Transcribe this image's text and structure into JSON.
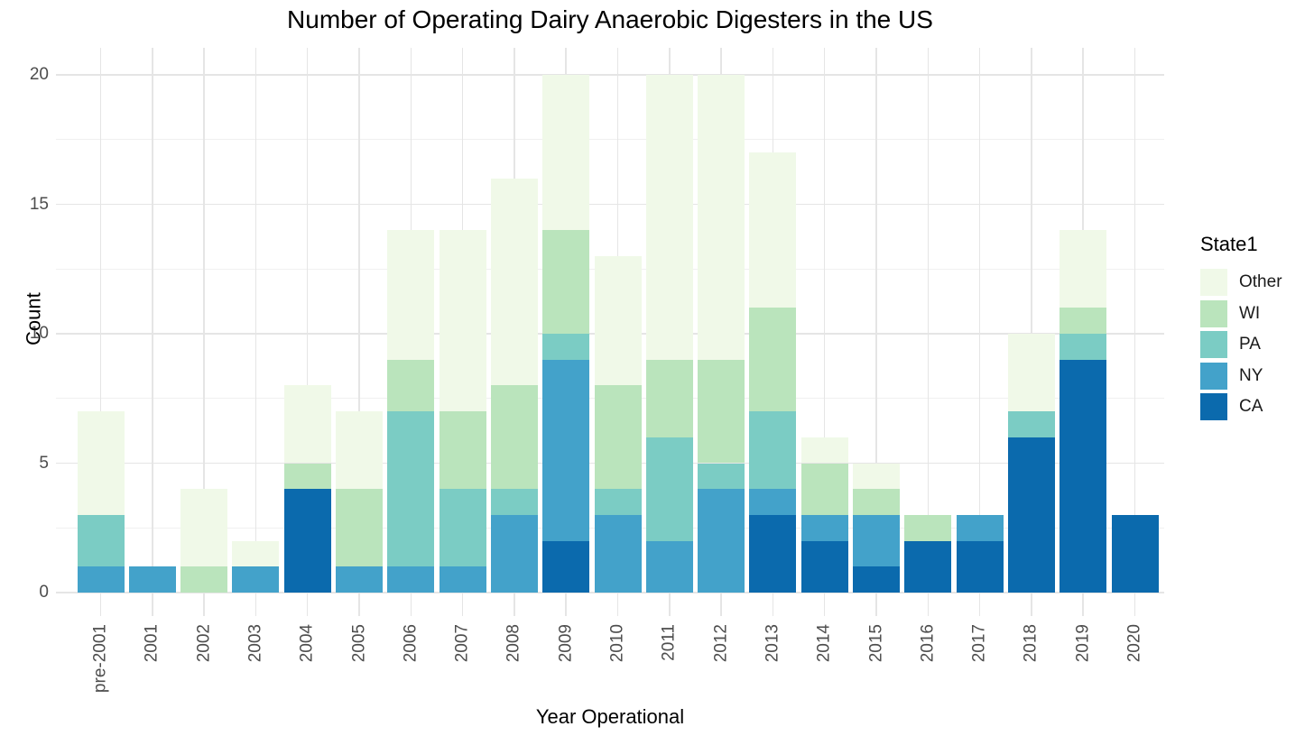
{
  "title": "Number of Operating Dairy Anaerobic Digesters in the US",
  "axes": {
    "x_label": "Year Operational",
    "y_label": "Count",
    "y_ticks": [
      0,
      5,
      10,
      15,
      20
    ],
    "y_minor_ticks": [
      2.5,
      7.5,
      12.5,
      17.5
    ]
  },
  "legend": {
    "title": "State1",
    "items": [
      {
        "label": "Other",
        "color": "#f0f9e8"
      },
      {
        "label": "WI",
        "color": "#bae4bc"
      },
      {
        "label": "PA",
        "color": "#7bccc4"
      },
      {
        "label": "NY",
        "color": "#43a2ca"
      },
      {
        "label": "CA",
        "color": "#0b6aad"
      }
    ]
  },
  "chart_data": {
    "type": "bar",
    "stacked": true,
    "title": "Number of Operating Dairy Anaerobic Digesters in the US",
    "xlabel": "Year Operational",
    "ylabel": "Count",
    "ylim": [
      0,
      20
    ],
    "grid": true,
    "legend_position": "right",
    "legend_title": "State1",
    "categories": [
      "pre-2001",
      "2001",
      "2002",
      "2003",
      "2004",
      "2005",
      "2006",
      "2007",
      "2008",
      "2009",
      "2010",
      "2011",
      "2012",
      "2013",
      "2014",
      "2015",
      "2016",
      "2017",
      "2018",
      "2019",
      "2020"
    ],
    "series": [
      {
        "name": "CA",
        "color": "#0b6aad",
        "values": [
          0,
          0,
          0,
          0,
          4,
          0,
          0,
          0,
          0,
          2,
          0,
          0,
          0,
          3,
          2,
          1,
          2,
          2,
          6,
          9,
          3
        ]
      },
      {
        "name": "NY",
        "color": "#43a2ca",
        "values": [
          1,
          1,
          0,
          1,
          0,
          1,
          1,
          1,
          3,
          7,
          3,
          2,
          4,
          1,
          1,
          2,
          0,
          1,
          0,
          0,
          0
        ]
      },
      {
        "name": "PA",
        "color": "#7bccc4",
        "values": [
          2,
          0,
          0,
          0,
          0,
          0,
          6,
          3,
          1,
          1,
          1,
          4,
          1,
          3,
          0,
          0,
          0,
          0,
          1,
          1,
          0
        ]
      },
      {
        "name": "WI",
        "color": "#bae4bc",
        "values": [
          0,
          0,
          1,
          0,
          1,
          3,
          2,
          3,
          4,
          4,
          4,
          3,
          4,
          4,
          2,
          1,
          1,
          0,
          0,
          1,
          0
        ]
      },
      {
        "name": "Other",
        "color": "#f0f9e8",
        "values": [
          4,
          0,
          3,
          1,
          3,
          3,
          5,
          7,
          8,
          6,
          5,
          11,
          11,
          6,
          1,
          1,
          0,
          0,
          3,
          3,
          0
        ]
      }
    ],
    "totals": [
      7,
      1,
      4,
      2,
      8,
      7,
      14,
      14,
      16,
      20,
      13,
      20,
      20,
      17,
      6,
      5,
      3,
      3,
      10,
      14,
      3
    ]
  }
}
